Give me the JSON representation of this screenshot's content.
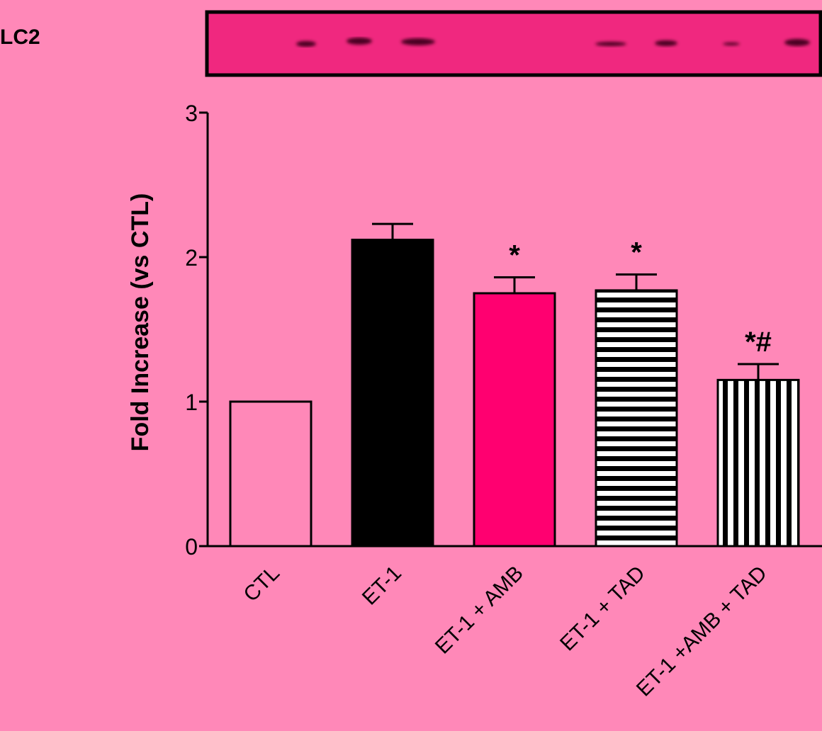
{
  "blot": {
    "label": "LC2"
  },
  "colors": {
    "background": "#ff88b8",
    "blot": "#f0287f",
    "magenta_bar": "#ff0070",
    "black": "#000000"
  },
  "chart_data": {
    "type": "bar",
    "title": "",
    "xlabel": "",
    "ylabel": "Fold Increase (vs CTL)",
    "ylim": [
      0,
      3
    ],
    "yticks": [
      "0",
      "1",
      "2",
      "3"
    ],
    "categories": [
      "CTL",
      "ET-1",
      "ET-1 + AMB",
      "ET-1 + TAD",
      "ET-1 +AMB + TAD"
    ],
    "values": [
      1.0,
      2.12,
      1.75,
      1.77,
      1.15
    ],
    "errors": [
      0,
      0.11,
      0.11,
      0.11,
      0.11
    ],
    "annotations": [
      "",
      "",
      "*",
      "*",
      "*#"
    ],
    "fills": [
      "open",
      "solid-black",
      "solid-magenta",
      "horizontal-stripes",
      "vertical-stripes"
    ],
    "grid": false,
    "legend": "none"
  }
}
